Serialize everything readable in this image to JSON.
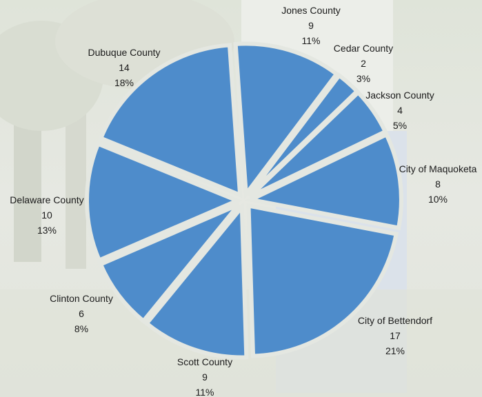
{
  "chart_data": {
    "type": "pie",
    "colors": {
      "slice": "#4E8CCB",
      "background": "#E3E6E0"
    },
    "slices": [
      {
        "label": "Jones County",
        "value": 9,
        "percent": "11%"
      },
      {
        "label": "Cedar County",
        "value": 2,
        "percent": "3%"
      },
      {
        "label": "Jackson County",
        "value": 4,
        "percent": "5%"
      },
      {
        "label": "City of Maquoketa",
        "value": 8,
        "percent": "10%"
      },
      {
        "label": "City of Bettendorf",
        "value": 17,
        "percent": "21%"
      },
      {
        "label": "Scott County",
        "value": 9,
        "percent": "11%"
      },
      {
        "label": "Clinton County",
        "value": 6,
        "percent": "8%"
      },
      {
        "label": "Delaware County",
        "value": 10,
        "percent": "13%"
      },
      {
        "label": "Dubuque County",
        "value": 14,
        "percent": "18%"
      }
    ]
  }
}
